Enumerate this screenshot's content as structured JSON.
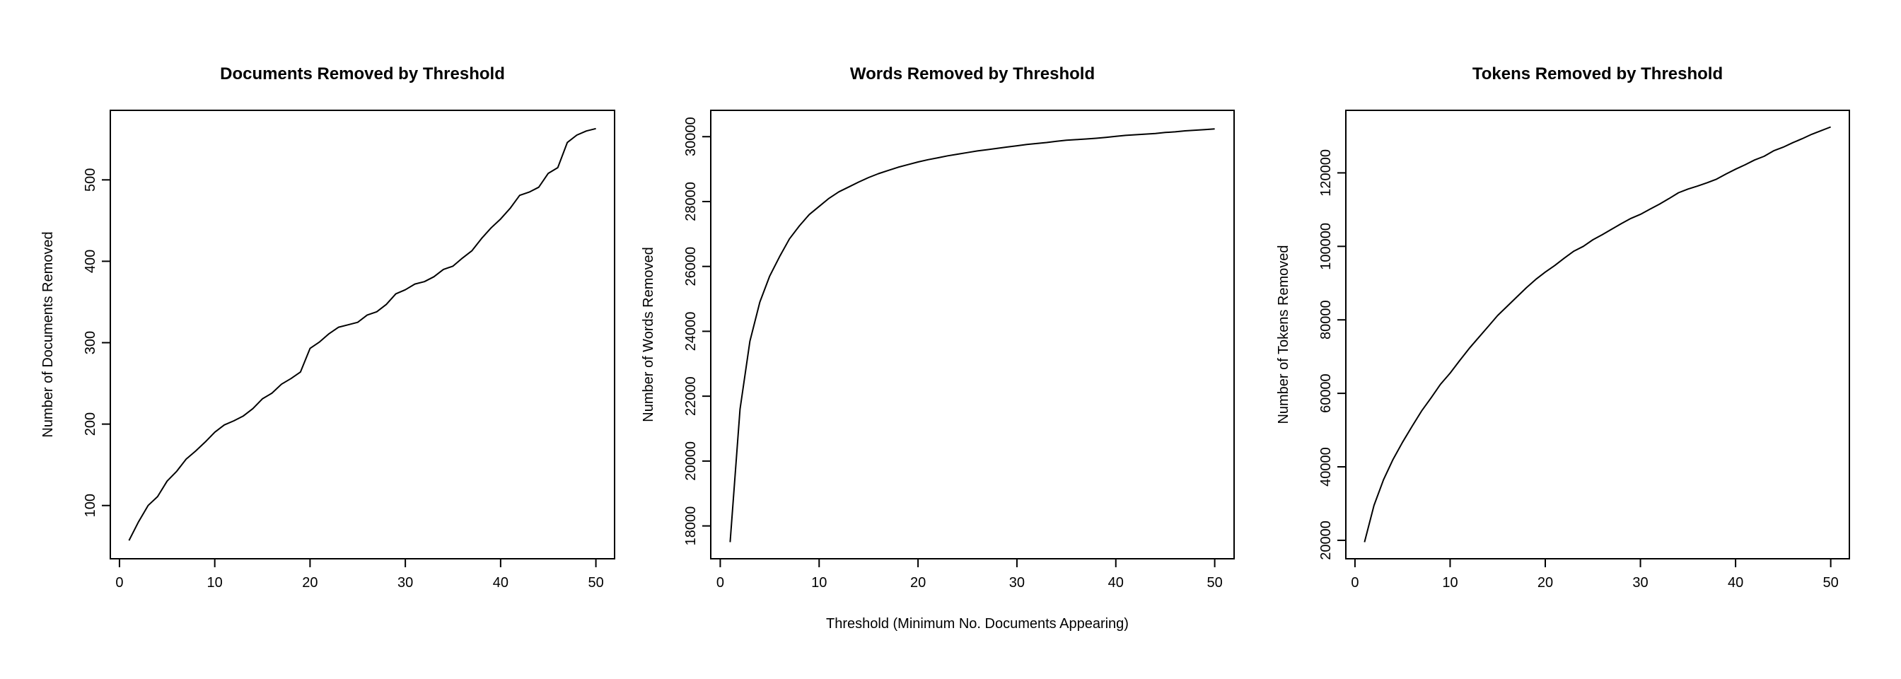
{
  "figure": {
    "shared_xlabel": "Threshold (Minimum No. Documents Appearing)"
  },
  "chart_data": [
    {
      "type": "line",
      "title": "Documents Removed by Threshold",
      "xlabel": "",
      "ylabel": "Number of Documents Removed",
      "xlim": [
        1,
        50
      ],
      "ylim": [
        55,
        565
      ],
      "xticks": [
        0,
        10,
        20,
        30,
        40,
        50
      ],
      "yticks": [
        100,
        200,
        300,
        400,
        500
      ],
      "grid": false,
      "x": [
        1,
        2,
        3,
        4,
        5,
        6,
        7,
        8,
        9,
        10,
        11,
        12,
        13,
        14,
        15,
        16,
        17,
        18,
        19,
        20,
        21,
        22,
        23,
        24,
        25,
        26,
        27,
        28,
        29,
        30,
        31,
        32,
        33,
        34,
        35,
        36,
        37,
        38,
        39,
        40,
        41,
        42,
        43,
        44,
        45,
        46,
        47,
        48,
        49,
        50
      ],
      "values": [
        57,
        80,
        100,
        111,
        130,
        142,
        157,
        167,
        178,
        190,
        199,
        204,
        210,
        219,
        231,
        238,
        249,
        256,
        264,
        293,
        301,
        311,
        319,
        322,
        325,
        334,
        338,
        347,
        360,
        365,
        372,
        375,
        381,
        390,
        394,
        404,
        413,
        428,
        441,
        452,
        465,
        481,
        485,
        491,
        508,
        515,
        546,
        555,
        560,
        563
      ]
    },
    {
      "type": "line",
      "title": "Words Removed by Threshold",
      "xlabel": "Threshold (Minimum No. Documents Appearing)",
      "ylabel": "Number of Words Removed",
      "xlim": [
        1,
        50
      ],
      "ylim": [
        17500,
        30300
      ],
      "xticks": [
        0,
        10,
        20,
        30,
        40,
        50
      ],
      "yticks": [
        18000,
        20000,
        22000,
        24000,
        26000,
        28000,
        30000
      ],
      "grid": false,
      "x": [
        1,
        2,
        3,
        4,
        5,
        6,
        7,
        8,
        9,
        10,
        11,
        12,
        13,
        14,
        15,
        16,
        17,
        18,
        19,
        20,
        21,
        22,
        23,
        24,
        25,
        26,
        27,
        28,
        29,
        30,
        31,
        32,
        33,
        34,
        35,
        36,
        37,
        38,
        39,
        40,
        41,
        42,
        43,
        44,
        45,
        46,
        47,
        48,
        49,
        50
      ],
      "values": [
        17500,
        21600,
        23700,
        24900,
        25700,
        26300,
        26850,
        27250,
        27600,
        27850,
        28100,
        28300,
        28450,
        28600,
        28740,
        28860,
        28960,
        29060,
        29140,
        29220,
        29290,
        29350,
        29410,
        29460,
        29510,
        29560,
        29600,
        29640,
        29680,
        29720,
        29760,
        29790,
        29820,
        29860,
        29890,
        29910,
        29930,
        29950,
        29980,
        30010,
        30040,
        30060,
        30080,
        30100,
        30130,
        30150,
        30180,
        30200,
        30220,
        30240
      ]
    },
    {
      "type": "line",
      "title": "Tokens Removed by Threshold",
      "xlabel": "",
      "ylabel": "Number of Tokens Removed",
      "xlim": [
        1,
        50
      ],
      "ylim": [
        19500,
        132500
      ],
      "xticks": [
        0,
        10,
        20,
        30,
        40,
        50
      ],
      "yticks": [
        20000,
        40000,
        60000,
        80000,
        100000,
        120000
      ],
      "grid": false,
      "x": [
        1,
        2,
        3,
        4,
        5,
        6,
        7,
        8,
        9,
        10,
        11,
        12,
        13,
        14,
        15,
        16,
        17,
        18,
        19,
        20,
        21,
        22,
        23,
        24,
        25,
        26,
        27,
        28,
        29,
        30,
        31,
        32,
        33,
        34,
        35,
        36,
        37,
        38,
        39,
        40,
        41,
        42,
        43,
        44,
        45,
        46,
        47,
        48,
        49,
        50
      ],
      "values": [
        19500,
        29500,
        36500,
        42000,
        46700,
        51000,
        55200,
        58800,
        62500,
        65500,
        68900,
        72200,
        75200,
        78200,
        81200,
        83700,
        86200,
        88700,
        91000,
        93000,
        94800,
        96800,
        98700,
        100000,
        101800,
        103200,
        104700,
        106200,
        107600,
        108700,
        110100,
        111500,
        113000,
        114600,
        115600,
        116400,
        117300,
        118300,
        119700,
        121000,
        122200,
        123500,
        124500,
        126000,
        127000,
        128200,
        129300,
        130500,
        131500,
        132500
      ]
    }
  ]
}
